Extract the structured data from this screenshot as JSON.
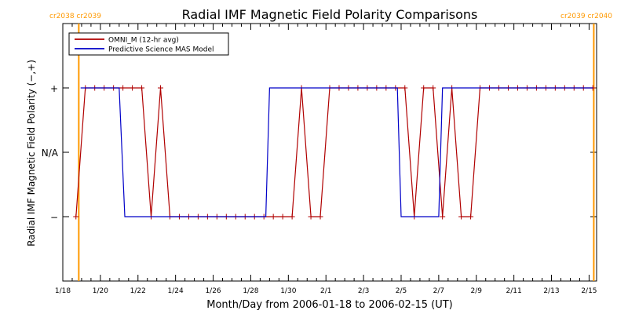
{
  "chart_data": {
    "type": "line",
    "title": "Radial IMF Magnetic Field Polarity Comparisons",
    "xlabel": "Month/Day from 2006-01-18 to 2006-02-15 (UT)",
    "ylabel": "Radial IMF Magnetic Field Polarity (−,+)",
    "xlim": [
      0,
      28.4
    ],
    "ylim": [
      -2,
      2
    ],
    "x_ticks": [
      {
        "day": 0,
        "label": "1/18"
      },
      {
        "day": 2,
        "label": "1/20"
      },
      {
        "day": 4,
        "label": "1/22"
      },
      {
        "day": 6,
        "label": "1/24"
      },
      {
        "day": 8,
        "label": "1/26"
      },
      {
        "day": 10,
        "label": "1/28"
      },
      {
        "day": 12,
        "label": "1/30"
      },
      {
        "day": 14,
        "label": "2/1"
      },
      {
        "day": 16,
        "label": "2/3"
      },
      {
        "day": 18,
        "label": "2/5"
      },
      {
        "day": 20,
        "label": "2/7"
      },
      {
        "day": 22,
        "label": "2/9"
      },
      {
        "day": 24,
        "label": "2/11"
      },
      {
        "day": 26,
        "label": "2/13"
      },
      {
        "day": 28,
        "label": "2/15"
      }
    ],
    "y_ticks": [
      {
        "value": 1,
        "label": "+"
      },
      {
        "value": 0,
        "label": "N/A"
      },
      {
        "value": -1,
        "label": "−"
      }
    ],
    "carrington_markers": [
      {
        "day": 0.85,
        "left_label": "cr2038",
        "right_label": "cr2039",
        "edge": "left"
      },
      {
        "day": 28.25,
        "left_label": "cr2039",
        "right_label": "cr2040",
        "edge": "right"
      }
    ],
    "legend": {
      "position": "top-left",
      "entries": [
        {
          "label": "OMNI_M (12-hr avg)",
          "color": "#b00000"
        },
        {
          "label": "Predictive Science MAS Model",
          "color": "#0000c8"
        }
      ]
    },
    "series": [
      {
        "name": "OMNI_M (12-hr avg)",
        "color": "#b00000",
        "markers": true,
        "points": [
          [
            0.7,
            -1
          ],
          [
            1.2,
            1
          ],
          [
            1.7,
            1
          ],
          [
            2.2,
            1
          ],
          [
            2.7,
            1
          ],
          [
            3.2,
            1
          ],
          [
            3.7,
            1
          ],
          [
            4.2,
            1
          ],
          [
            4.7,
            -1
          ],
          [
            5.2,
            1
          ],
          [
            5.7,
            -1
          ],
          [
            6.2,
            -1
          ],
          [
            6.7,
            -1
          ],
          [
            7.2,
            -1
          ],
          [
            7.7,
            -1
          ],
          [
            8.2,
            -1
          ],
          [
            8.7,
            -1
          ],
          [
            9.2,
            -1
          ],
          [
            9.7,
            -1
          ],
          [
            10.2,
            -1
          ],
          [
            10.7,
            -1
          ],
          [
            11.2,
            -1
          ],
          [
            11.7,
            -1
          ],
          [
            12.2,
            -1
          ],
          [
            12.7,
            1
          ],
          [
            13.2,
            -1
          ],
          [
            13.7,
            -1
          ],
          [
            14.2,
            1
          ],
          [
            14.7,
            1
          ],
          [
            15.2,
            1
          ],
          [
            15.7,
            1
          ],
          [
            16.2,
            1
          ],
          [
            16.7,
            1
          ],
          [
            17.2,
            1
          ],
          [
            17.7,
            1
          ],
          [
            18.2,
            1
          ],
          [
            18.7,
            -1
          ],
          [
            19.2,
            1
          ],
          [
            19.7,
            1
          ],
          [
            20.2,
            -1
          ],
          [
            20.7,
            1
          ],
          [
            21.2,
            -1
          ],
          [
            21.7,
            -1
          ],
          [
            22.2,
            1
          ],
          [
            22.7,
            1
          ],
          [
            23.2,
            1
          ],
          [
            23.7,
            1
          ],
          [
            24.2,
            1
          ],
          [
            24.7,
            1
          ],
          [
            25.2,
            1
          ],
          [
            25.7,
            1
          ],
          [
            26.2,
            1
          ],
          [
            26.7,
            1
          ],
          [
            27.2,
            1
          ],
          [
            27.7,
            1
          ],
          [
            28.2,
            1
          ]
        ]
      },
      {
        "name": "Predictive Science MAS Model",
        "color": "#0000c8",
        "markers": false,
        "points": [
          [
            0.95,
            1
          ],
          [
            3.0,
            1
          ],
          [
            3.3,
            -1
          ],
          [
            10.8,
            -1
          ],
          [
            11.0,
            1
          ],
          [
            17.8,
            1
          ],
          [
            18.0,
            -1
          ],
          [
            20.0,
            -1
          ],
          [
            20.2,
            1
          ],
          [
            28.2,
            1
          ]
        ]
      }
    ]
  }
}
